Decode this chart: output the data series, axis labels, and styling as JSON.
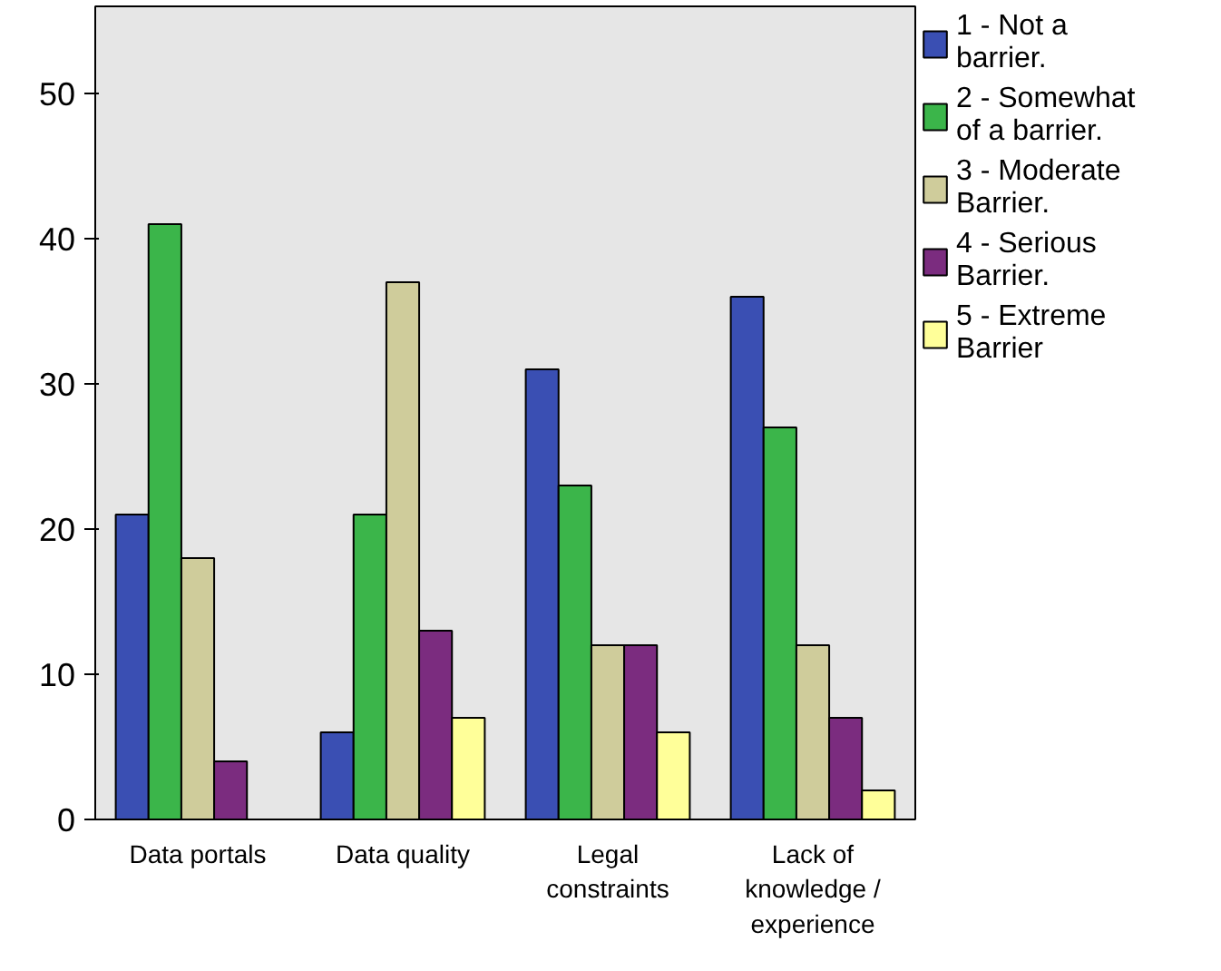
{
  "chart_data": {
    "type": "bar",
    "categories": [
      "Data portals",
      "Data quality",
      "Legal constraints",
      "Lack of knowledge / experience"
    ],
    "series": [
      {
        "name": "1 - Not a barrier.",
        "color": "#3a4fb3",
        "values": [
          21,
          6,
          31,
          36
        ]
      },
      {
        "name": "2 - Somewhat of a barrier.",
        "color": "#3bb54a",
        "values": [
          41,
          21,
          23,
          27
        ]
      },
      {
        "name": "3 - Moderate Barrier.",
        "color": "#cfcc9b",
        "values": [
          18,
          37,
          12,
          12
        ]
      },
      {
        "name": "4 - Serious Barrier.",
        "color": "#7b2c7f",
        "values": [
          4,
          13,
          12,
          7
        ]
      },
      {
        "name": "5 - Extreme Barrier",
        "color": "#ffff99",
        "values": [
          null,
          7,
          6,
          2
        ]
      }
    ],
    "ylim": [
      0,
      56
    ],
    "yticks": [
      0,
      10,
      20,
      30,
      40,
      50
    ],
    "grid": false,
    "legend": "right"
  }
}
